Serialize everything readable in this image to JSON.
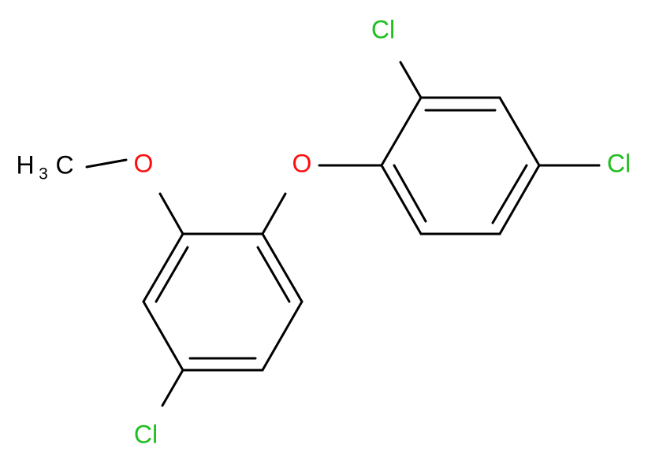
{
  "atoms": {
    "cl_top": "Cl",
    "cl_right": "Cl",
    "cl_bottom": "Cl",
    "o_methoxy": "O",
    "o_ether": "O"
  },
  "methyl": {
    "h": "H",
    "sub": "3",
    "c": "C"
  }
}
